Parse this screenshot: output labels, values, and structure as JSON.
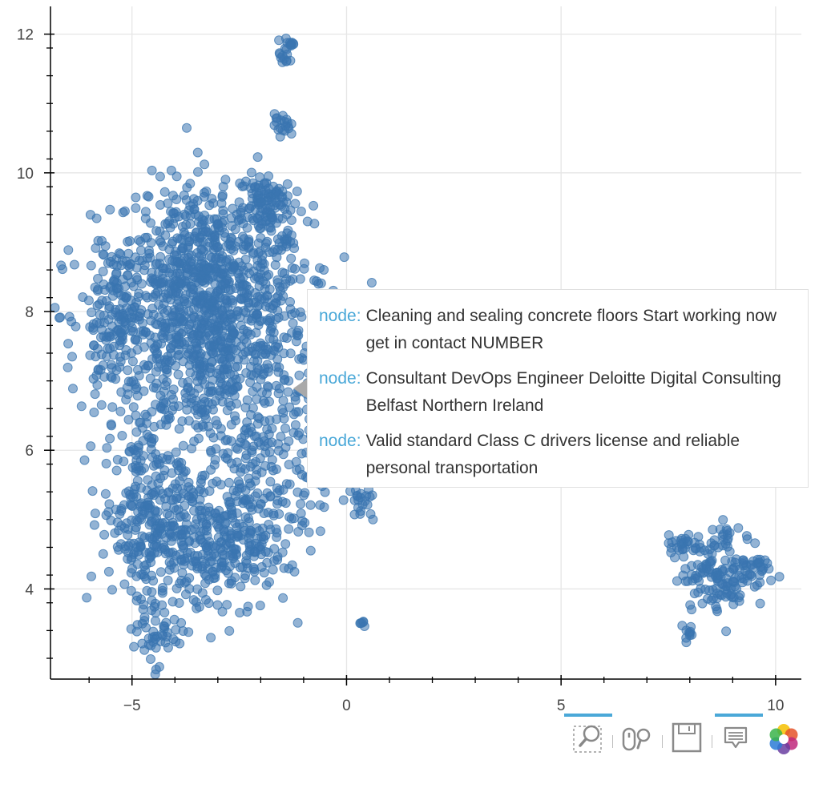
{
  "chart_data": {
    "type": "scatter",
    "title": "",
    "xlabel": "",
    "ylabel": "",
    "xlim": [
      -6.9,
      10.6
    ],
    "ylim": [
      2.7,
      12.4
    ],
    "x_ticks": [
      -5,
      0,
      5,
      10
    ],
    "x_tick_labels": [
      "−5",
      "0",
      "5",
      "10"
    ],
    "y_ticks": [
      4,
      6,
      8,
      10,
      12
    ],
    "y_tick_labels": [
      "4",
      "6",
      "8",
      "10",
      "12"
    ],
    "grid": true,
    "marker_color": "#3a75b0",
    "clusters": [
      {
        "cx": -3.2,
        "cy": 7.7,
        "sx": 1.2,
        "sy": 0.9,
        "n": 1000
      },
      {
        "cx": -3.1,
        "cy": 8.8,
        "sx": 0.9,
        "sy": 0.55,
        "n": 260
      },
      {
        "cx": -5.3,
        "cy": 7.9,
        "sx": 0.45,
        "sy": 0.6,
        "n": 160
      },
      {
        "cx": -4.8,
        "cy": 5.1,
        "sx": 0.45,
        "sy": 0.6,
        "n": 180
      },
      {
        "cx": -3.4,
        "cy": 4.7,
        "sx": 0.8,
        "sy": 0.55,
        "n": 320
      },
      {
        "cx": -2.1,
        "cy": 5.2,
        "sx": 0.6,
        "sy": 0.6,
        "n": 170
      },
      {
        "cx": -4.5,
        "cy": 3.4,
        "sx": 0.25,
        "sy": 0.25,
        "n": 45
      },
      {
        "cx": -1.9,
        "cy": 9.55,
        "sx": 0.3,
        "sy": 0.25,
        "n": 90
      },
      {
        "cx": -0.9,
        "cy": 6.3,
        "sx": 0.4,
        "sy": 0.6,
        "n": 70
      },
      {
        "cx": 0.3,
        "cy": 5.2,
        "sx": 0.2,
        "sy": 0.12,
        "n": 22
      },
      {
        "cx": 0.4,
        "cy": 3.5,
        "sx": 0.05,
        "sy": 0.05,
        "n": 6
      },
      {
        "cx": -1.45,
        "cy": 11.7,
        "sx": 0.06,
        "sy": 0.1,
        "n": 14
      },
      {
        "cx": -1.3,
        "cy": 11.88,
        "sx": 0.05,
        "sy": 0.05,
        "n": 8
      },
      {
        "cx": -1.5,
        "cy": 10.7,
        "sx": 0.09,
        "sy": 0.08,
        "n": 20
      },
      {
        "cx": 8.8,
        "cy": 4.25,
        "sx": 0.5,
        "sy": 0.28,
        "n": 150
      },
      {
        "cx": 7.8,
        "cy": 4.65,
        "sx": 0.2,
        "sy": 0.1,
        "n": 25
      },
      {
        "cx": 9.55,
        "cy": 4.35,
        "sx": 0.12,
        "sy": 0.05,
        "n": 15
      },
      {
        "cx": 8.8,
        "cy": 4.8,
        "sx": 0.06,
        "sy": 0.08,
        "n": 8
      },
      {
        "cx": 8.0,
        "cy": 3.4,
        "sx": 0.06,
        "sy": 0.08,
        "n": 10
      }
    ]
  },
  "tooltip": {
    "items": [
      {
        "key": "node:",
        "value": "Cleaning and sealing concrete floors Start working now get in contact NUMBER"
      },
      {
        "key": "node:",
        "value": "Consultant DevOps Engineer Deloitte Digital Consulting Belfast Northern Ireland"
      },
      {
        "key": "node:",
        "value": "Valid standard Class C drivers license and reliable personal transportation"
      }
    ]
  },
  "toolbar": {
    "tools": [
      {
        "icon": "box-zoom-icon",
        "active": true
      },
      {
        "icon": "wheel-zoom-icon",
        "active": false
      },
      {
        "icon": "save-icon",
        "active": false
      },
      {
        "icon": "hover-icon",
        "active": true
      },
      {
        "icon": "bokeh-logo-icon",
        "active": false
      }
    ],
    "accent_color": "#4aa8d8"
  }
}
